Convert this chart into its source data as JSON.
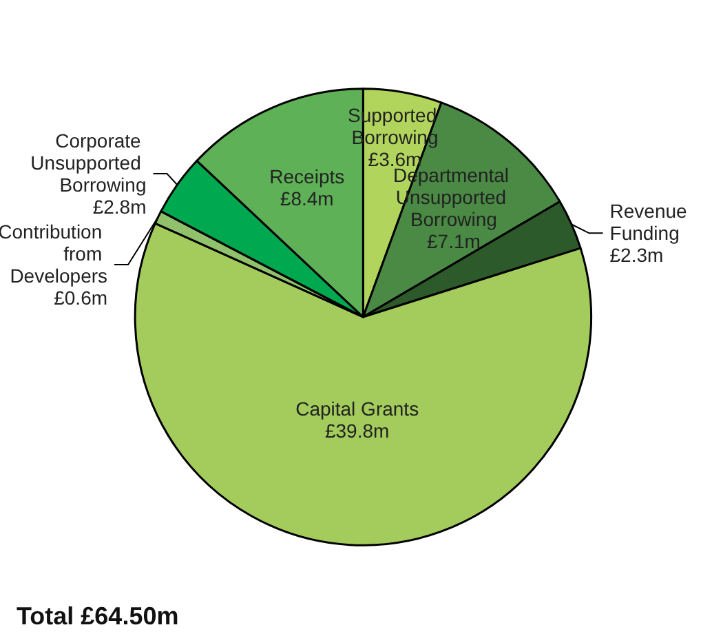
{
  "chart_data": {
    "type": "pie",
    "categories": [
      "Supported Borrowing",
      "Departmental Unsupported Borrowing",
      "Revenue Funding",
      "Capital Grants",
      "Contribution from Developers",
      "Corporate Unsupported Borrowing",
      "Receipts"
    ],
    "values": [
      3.6,
      7.1,
      2.3,
      39.8,
      0.6,
      2.8,
      8.4
    ],
    "value_labels": [
      "£3.6m",
      "£7.1m",
      "£2.3m",
      "£39.8m",
      "£0.6m",
      "£2.8m",
      "£8.4m"
    ],
    "colors": [
      "#b0d45c",
      "#4a8a45",
      "#2c5a2a",
      "#a3cc5c",
      "#8fc26a",
      "#00a84f",
      "#5fb157"
    ],
    "annotations": [
      "Total £64.50m"
    ]
  }
}
